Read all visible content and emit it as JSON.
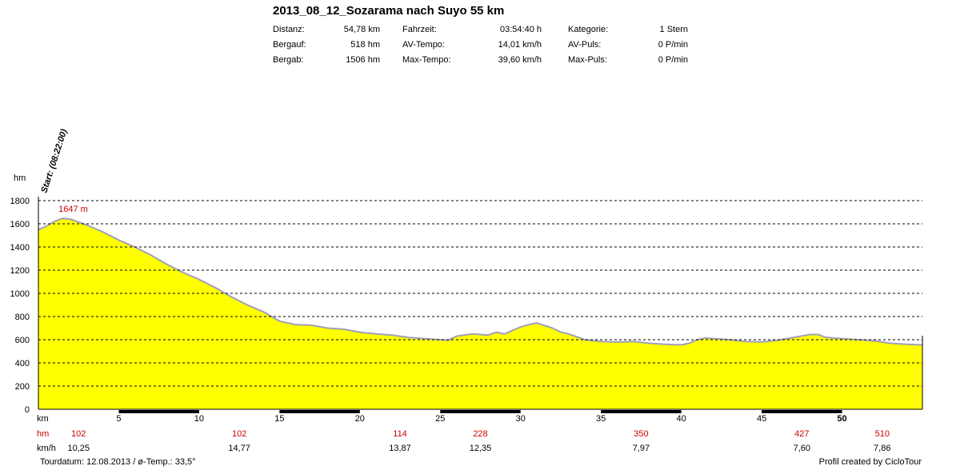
{
  "header": {
    "title": "2013_08_12_Sozarama nach Suyo 55 km",
    "stats": [
      {
        "label": "Distanz:",
        "value": "54,78 km"
      },
      {
        "label": "Bergauf:",
        "value": "518 hm"
      },
      {
        "label": "Bergab:",
        "value": "1506 hm"
      },
      {
        "label": "Fahrzeit:",
        "value": "03:54:40 h"
      },
      {
        "label": "AV-Tempo:",
        "value": "14,01 km/h"
      },
      {
        "label": "Max-Tempo:",
        "value": "39,60 km/h"
      },
      {
        "label": "Kategorie:",
        "value": "1 Stern"
      },
      {
        "label": "AV-Puls:",
        "value": "0 P/min"
      },
      {
        "label": "Max-Puls:",
        "value": "0 P/min"
      }
    ]
  },
  "chart_data": {
    "type": "area",
    "ylabel": "hm",
    "xlabel": "km",
    "ylim": [
      0,
      1800
    ],
    "xlim": [
      0,
      55
    ],
    "y_ticks": [
      "0",
      "200",
      "400",
      "600",
      "800",
      "1000",
      "1200",
      "1400",
      "1600",
      "1800"
    ],
    "x_ticks": [
      "5",
      "10",
      "15",
      "20",
      "25",
      "30",
      "35",
      "40",
      "45",
      "50"
    ],
    "grid": "horizontal dashed",
    "fill_color": "#ffff00",
    "line_color": "#a0a0b8",
    "start_label": "Start: (08:22:00)",
    "max_label": "1647 m",
    "max_point": {
      "x": 1.5,
      "y": 1647
    },
    "profile": [
      [
        0,
        1550
      ],
      [
        0.5,
        1580
      ],
      [
        1,
        1620
      ],
      [
        1.5,
        1647
      ],
      [
        2,
        1640
      ],
      [
        3,
        1590
      ],
      [
        4,
        1530
      ],
      [
        5,
        1460
      ],
      [
        6,
        1400
      ],
      [
        7,
        1330
      ],
      [
        8,
        1250
      ],
      [
        9,
        1180
      ],
      [
        10,
        1120
      ],
      [
        11,
        1050
      ],
      [
        12,
        970
      ],
      [
        13,
        900
      ],
      [
        14,
        840
      ],
      [
        15,
        760
      ],
      [
        16,
        730
      ],
      [
        17,
        725
      ],
      [
        18,
        700
      ],
      [
        19,
        690
      ],
      [
        20,
        665
      ],
      [
        21,
        650
      ],
      [
        22,
        640
      ],
      [
        23,
        620
      ],
      [
        24,
        610
      ],
      [
        25,
        600
      ],
      [
        25.5,
        595
      ],
      [
        26,
        630
      ],
      [
        27,
        650
      ],
      [
        28,
        640
      ],
      [
        28.5,
        665
      ],
      [
        29,
        650
      ],
      [
        30,
        710
      ],
      [
        30.5,
        730
      ],
      [
        31,
        745
      ],
      [
        32,
        700
      ],
      [
        32.5,
        665
      ],
      [
        33,
        650
      ],
      [
        34,
        600
      ],
      [
        35,
        585
      ],
      [
        36,
        580
      ],
      [
        37,
        585
      ],
      [
        38,
        570
      ],
      [
        39,
        560
      ],
      [
        40,
        555
      ],
      [
        40.5,
        570
      ],
      [
        41,
        600
      ],
      [
        41.5,
        615
      ],
      [
        42,
        610
      ],
      [
        43,
        600
      ],
      [
        44,
        585
      ],
      [
        45,
        580
      ],
      [
        46,
        595
      ],
      [
        47,
        620
      ],
      [
        48,
        645
      ],
      [
        48.5,
        645
      ],
      [
        49,
        620
      ],
      [
        50,
        610
      ],
      [
        51,
        600
      ],
      [
        52,
        590
      ],
      [
        53,
        570
      ],
      [
        54,
        560
      ],
      [
        55,
        555
      ]
    ],
    "segments": [
      {
        "km": "0-5",
        "hm": "102",
        "kmh": "10,25"
      },
      {
        "km": "10-15",
        "hm": "102",
        "kmh": "14,77"
      },
      {
        "km": "20-25",
        "hm": "114",
        "kmh": "13,87"
      },
      {
        "km": "25-30",
        "hm": "228",
        "kmh": "12,35"
      },
      {
        "km": "35-40",
        "hm": "350",
        "kmh": "7,97"
      },
      {
        "km": "45-50",
        "hm": "427",
        "kmh": "7,60"
      },
      {
        "km": "50-55",
        "hm": "510",
        "kmh": "7,86"
      }
    ],
    "row_labels": {
      "km": "km",
      "hm": "hm",
      "kmh": "km/h"
    },
    "bold_x_tick": "50"
  },
  "footer": {
    "left": "Tourdatum: 12.08.2013  /  ø-Temp.: 33,5°",
    "right": "Profil created by CicloTour"
  }
}
